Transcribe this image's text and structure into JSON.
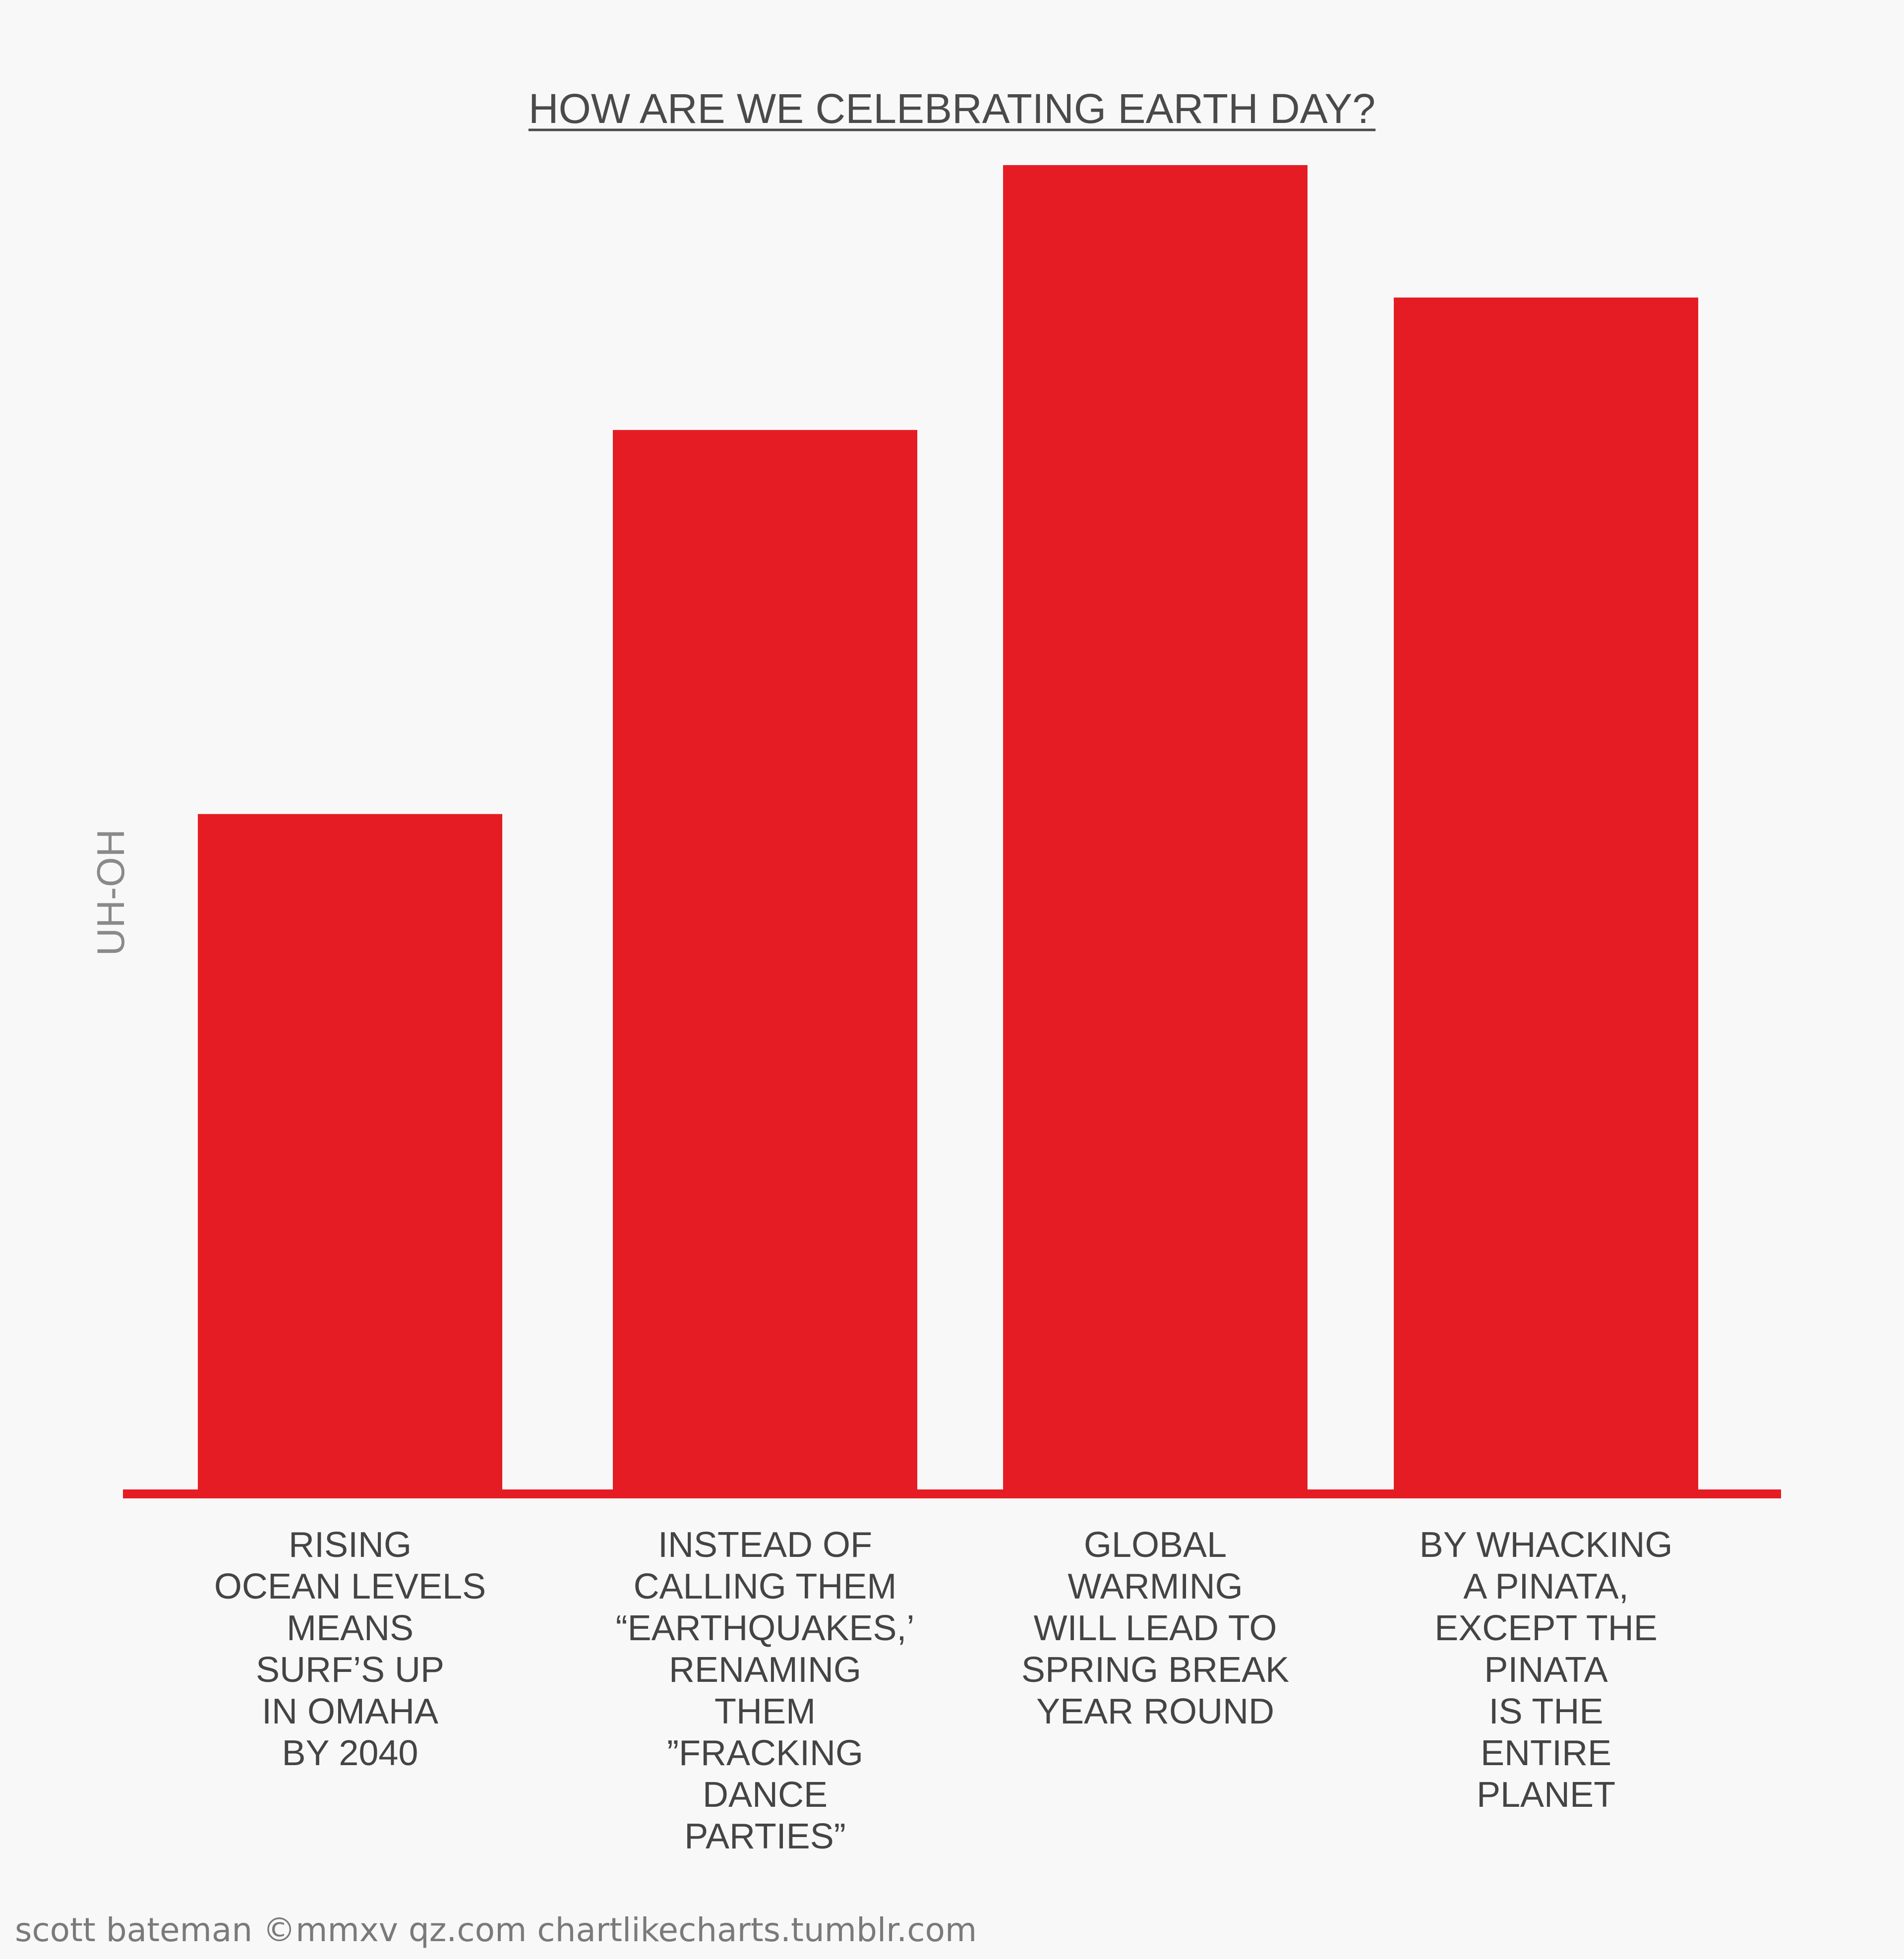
{
  "chart_data": {
    "type": "bar",
    "title": "HOW ARE WE CELEBRATING EARTH DAY?",
    "ylabel": "UH-OH",
    "xlabel": "",
    "categories": [
      [
        "RISING",
        "OCEAN LEVELS",
        "MEANS",
        "SURF’S UP",
        "IN OMAHA",
        "BY 2040"
      ],
      [
        "INSTEAD OF",
        "CALLING THEM",
        "“EARTHQUAKES,’",
        "RENAMING",
        "THEM",
        "”FRACKING",
        "DANCE",
        "PARTIES”"
      ],
      [
        "GLOBAL",
        "WARMING",
        "WILL LEAD TO",
        "SPRING BREAK",
        "YEAR ROUND"
      ],
      [
        "BY WHACKING",
        "A PINATA,",
        "EXCEPT THE",
        "PINATA",
        "IS THE",
        "ENTIRE",
        "PLANET"
      ]
    ],
    "values": [
      51,
      80,
      100,
      90
    ],
    "ylim": [
      0,
      100
    ],
    "grid": false,
    "bar_color": "#e51c24",
    "axis_color": "#e51c24"
  },
  "credit": "scott bateman ©mmxv qz.com chartlikecharts.tumblr.com"
}
